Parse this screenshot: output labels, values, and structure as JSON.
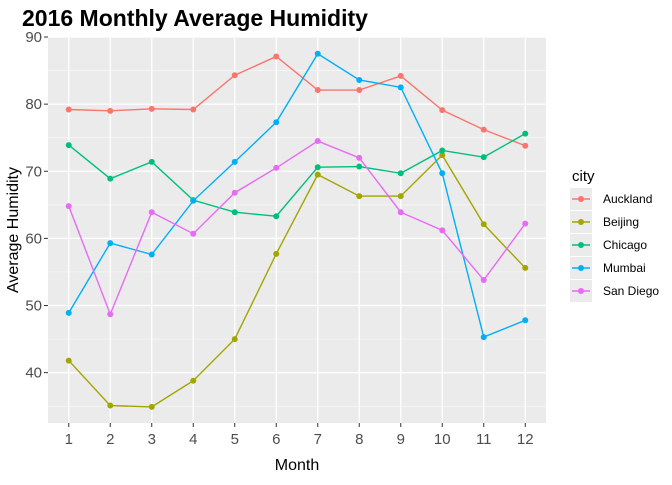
{
  "chart_data": {
    "type": "line",
    "title": "2016 Monthly Average Humidity",
    "xlabel": "Month",
    "ylabel": "Average Humidity",
    "x": [
      1,
      2,
      3,
      4,
      5,
      6,
      7,
      8,
      9,
      10,
      11,
      12
    ],
    "xlim": [
      0.5,
      12.5
    ],
    "ylim": [
      32.5,
      90
    ],
    "yticks": [
      40,
      50,
      60,
      70,
      80,
      90
    ],
    "grid": true,
    "legend": {
      "title": "city",
      "placement": "right"
    },
    "series": [
      {
        "name": "Auckland",
        "color": "#F8766D",
        "values": [
          79.2,
          79.0,
          79.3,
          79.2,
          84.3,
          87.1,
          82.1,
          82.1,
          84.2,
          79.1,
          76.2,
          73.8
        ]
      },
      {
        "name": "Beijing",
        "color": "#A3A500",
        "values": [
          41.8,
          35.1,
          34.9,
          38.8,
          45.0,
          57.7,
          69.5,
          66.3,
          66.3,
          72.4,
          62.1,
          55.6
        ]
      },
      {
        "name": "Chicago",
        "color": "#00BF7D",
        "values": [
          73.9,
          68.9,
          71.4,
          65.7,
          63.9,
          63.3,
          70.6,
          70.7,
          69.7,
          73.1,
          72.1,
          75.6
        ]
      },
      {
        "name": "Mumbai",
        "color": "#00B0F6",
        "values": [
          48.9,
          59.3,
          57.6,
          65.6,
          71.4,
          77.3,
          87.5,
          83.6,
          82.5,
          69.7,
          45.3,
          47.8
        ]
      },
      {
        "name": "San Diego",
        "color": "#E76BF3",
        "values": [
          64.8,
          48.7,
          63.9,
          60.7,
          66.8,
          70.5,
          74.5,
          72.0,
          63.9,
          61.2,
          53.8,
          62.2
        ]
      }
    ]
  }
}
